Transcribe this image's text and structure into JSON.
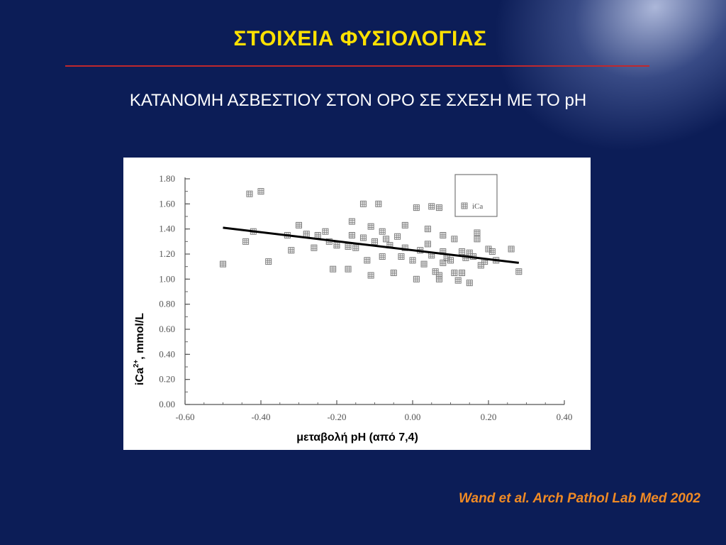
{
  "slide": {
    "title": "ΣΤΟΙΧΕΙΑ ΦΥΣΙΟΛΟΓΙΑΣ",
    "subtitle": "ΚΑΤΑΝΟΜΗ ΑΣΒΕΣΤΙΟΥ ΣΤΟΝ ΟΡΟ ΣΕ ΣΧΕΣΗ ΜΕ ΤΟ pH",
    "citation": "Wand et al. Arch Pathol Lab Med 2002",
    "colors": {
      "background": "#0c1d57",
      "title": "#ffe100",
      "rule": "#c0282d",
      "citation": "#f08a24",
      "marker": "#7a7a7a"
    }
  },
  "chart_data": {
    "type": "scatter",
    "xlabel": "μεταβολή pH (από 7,4)",
    "ylabel_main": "iCa",
    "ylabel_sup": "2+",
    "ylabel_rest": ", mmol/L",
    "xlim": [
      -0.6,
      0.4
    ],
    "ylim": [
      0.0,
      1.8
    ],
    "x_ticks": [
      "-0.60",
      "-0.40",
      "-0.20",
      "0.00",
      "0.20",
      "0.40"
    ],
    "x_tick_values": [
      -0.6,
      -0.4,
      -0.2,
      0.0,
      0.2,
      0.4
    ],
    "y_ticks": [
      "0.00",
      "0.20",
      "0.40",
      "0.60",
      "0.80",
      "1.00",
      "1.20",
      "1.40",
      "1.60",
      "1.80"
    ],
    "y_tick_values": [
      0.0,
      0.2,
      0.4,
      0.6,
      0.8,
      1.0,
      1.2,
      1.4,
      1.6,
      1.8
    ],
    "legend": {
      "label": "iCa",
      "position": "top-right"
    },
    "trendline": {
      "x": [
        -0.5,
        0.28
      ],
      "y": [
        1.41,
        1.13
      ]
    },
    "series": [
      {
        "name": "iCa",
        "points": [
          [
            -0.5,
            1.12
          ],
          [
            -0.43,
            1.68
          ],
          [
            -0.4,
            1.7
          ],
          [
            -0.44,
            1.3
          ],
          [
            -0.42,
            1.38
          ],
          [
            -0.38,
            1.14
          ],
          [
            -0.33,
            1.35
          ],
          [
            -0.32,
            1.23
          ],
          [
            -0.3,
            1.43
          ],
          [
            -0.28,
            1.36
          ],
          [
            -0.26,
            1.25
          ],
          [
            -0.25,
            1.35
          ],
          [
            -0.23,
            1.38
          ],
          [
            -0.22,
            1.3
          ],
          [
            -0.21,
            1.08
          ],
          [
            -0.2,
            1.27
          ],
          [
            -0.17,
            1.08
          ],
          [
            -0.17,
            1.26
          ],
          [
            -0.16,
            1.46
          ],
          [
            -0.16,
            1.35
          ],
          [
            -0.15,
            1.25
          ],
          [
            -0.13,
            1.33
          ],
          [
            -0.13,
            1.6
          ],
          [
            -0.12,
            1.15
          ],
          [
            -0.11,
            1.42
          ],
          [
            -0.11,
            1.03
          ],
          [
            -0.1,
            1.3
          ],
          [
            -0.09,
            1.6
          ],
          [
            -0.08,
            1.38
          ],
          [
            -0.08,
            1.18
          ],
          [
            -0.07,
            1.32
          ],
          [
            -0.06,
            1.27
          ],
          [
            -0.05,
            1.05
          ],
          [
            -0.04,
            1.34
          ],
          [
            -0.03,
            1.18
          ],
          [
            -0.02,
            1.43
          ],
          [
            -0.02,
            1.25
          ],
          [
            0.0,
            1.15
          ],
          [
            0.01,
            1.0
          ],
          [
            0.01,
            1.57
          ],
          [
            0.02,
            1.23
          ],
          [
            0.03,
            1.12
          ],
          [
            0.04,
            1.4
          ],
          [
            0.04,
            1.28
          ],
          [
            0.05,
            1.58
          ],
          [
            0.05,
            1.19
          ],
          [
            0.06,
            1.06
          ],
          [
            0.07,
            1.57
          ],
          [
            0.07,
            1.0
          ],
          [
            0.07,
            1.03
          ],
          [
            0.08,
            1.22
          ],
          [
            0.08,
            1.13
          ],
          [
            0.08,
            1.35
          ],
          [
            0.09,
            1.17
          ],
          [
            0.1,
            1.15
          ],
          [
            0.11,
            1.32
          ],
          [
            0.11,
            1.05
          ],
          [
            0.12,
            0.99
          ],
          [
            0.13,
            1.05
          ],
          [
            0.13,
            1.22
          ],
          [
            0.14,
            1.17
          ],
          [
            0.15,
            0.97
          ],
          [
            0.15,
            1.21
          ],
          [
            0.16,
            1.18
          ],
          [
            0.17,
            1.32
          ],
          [
            0.17,
            1.37
          ],
          [
            0.18,
            1.11
          ],
          [
            0.19,
            1.14
          ],
          [
            0.2,
            1.24
          ],
          [
            0.21,
            1.22
          ],
          [
            0.22,
            1.15
          ],
          [
            0.26,
            1.24
          ],
          [
            0.28,
            1.06
          ]
        ]
      }
    ]
  }
}
